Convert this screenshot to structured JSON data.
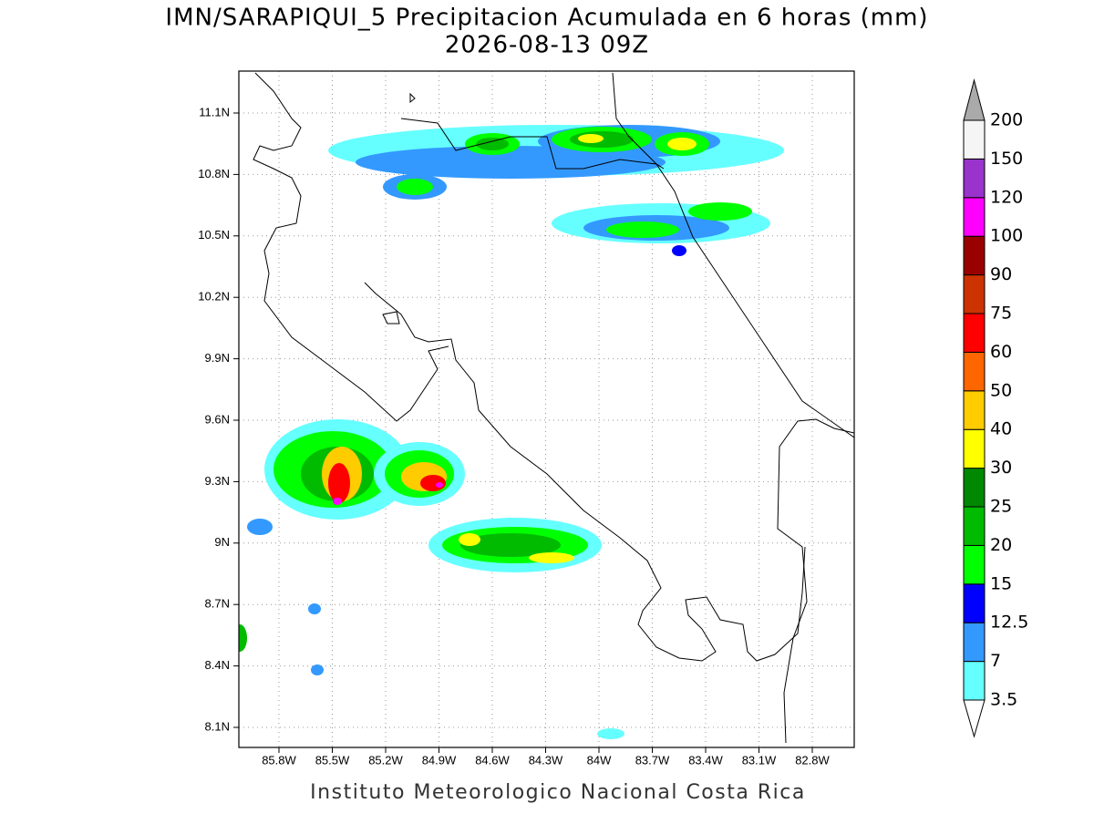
{
  "title": "IMN/SARAPIQUI_5 Precipitacion Acumulada en 6 horas (mm)",
  "subtitle": "2026-08-13 09Z",
  "map": {
    "x_labels": [
      "85.8W",
      "85.5W",
      "85.2W",
      "84.9W",
      "84.6W",
      "84.3W",
      "84W",
      "83.7W",
      "83.4W",
      "83.1W",
      "82.8W"
    ],
    "y_labels": [
      "11.1N",
      "10.8N",
      "10.5N",
      "10.2N",
      "9.9N",
      "9.6N",
      "9.3N",
      "9N",
      "8.7N",
      "8.4N",
      "8.1N"
    ]
  },
  "colorbar": {
    "labels": [
      "3.5",
      "7",
      "12.5",
      "15",
      "20",
      "25",
      "30",
      "40",
      "50",
      "60",
      "75",
      "90",
      "100",
      "120",
      "150",
      "200"
    ],
    "colors": [
      "#66ffff",
      "#3399ff",
      "#0000ff",
      "#00ff00",
      "#00bb00",
      "#008800",
      "#ffff00",
      "#ffcc00",
      "#ff6600",
      "#ff0000",
      "#cc3300",
      "#990000",
      "#ff00ff",
      "#9933cc",
      "#f5f5f5"
    ],
    "below_color": "#ffffff",
    "above_color": "#aaaaaa"
  },
  "footer": "Instituto Meteorologico Nacional Costa Rica"
}
